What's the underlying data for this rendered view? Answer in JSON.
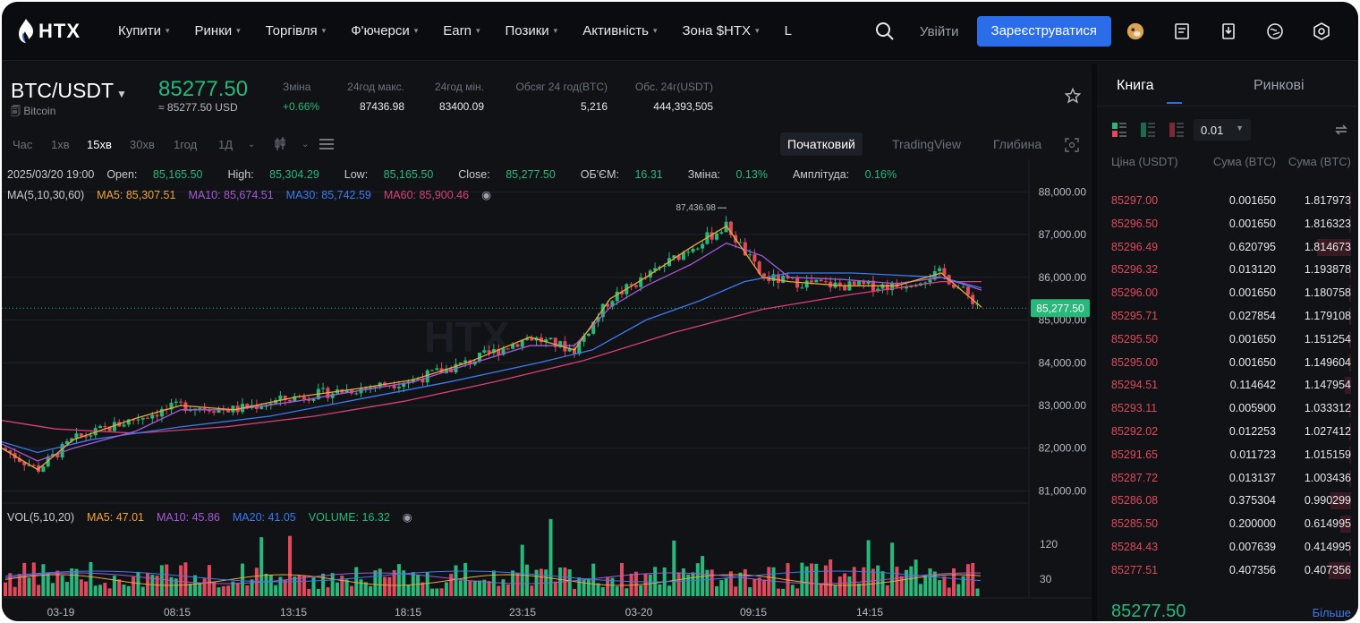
{
  "brand": {
    "logo_text": "HTX"
  },
  "nav": {
    "items": [
      {
        "label": "Купити"
      },
      {
        "label": "Ринки"
      },
      {
        "label": "Торгівля"
      },
      {
        "label": "Ф'ючерси"
      },
      {
        "label": "Earn"
      },
      {
        "label": "Позики"
      },
      {
        "label": "Активність"
      },
      {
        "label": "Зона $HTX"
      },
      {
        "label": "L"
      }
    ],
    "login_label": "Увійти",
    "signup_label": "Зареєструватися",
    "icons": [
      "search-icon",
      "avatar-icon",
      "orders-icon",
      "download-icon",
      "language-icon",
      "settings-icon"
    ]
  },
  "ticker": {
    "pair": "BTC/USDT",
    "coin_name": "Bitcoin",
    "last_price": "85277.50",
    "last_price_usd": "≈ 85277.50 USD",
    "stats": [
      {
        "label": "Зміна",
        "value": "+0.66%"
      },
      {
        "label": "24год макс.",
        "value": "87436.98"
      },
      {
        "label": "24год мін.",
        "value": "83400.09"
      },
      {
        "label": "Обсяг 24 год(BTC)",
        "value": "5,216"
      },
      {
        "label": "Обс. 24г(USDT)",
        "value": "444,393,505"
      }
    ]
  },
  "toolbar": {
    "intervals": [
      "Час",
      "1хв",
      "15хв",
      "30хв",
      "1год",
      "1Д"
    ],
    "active_interval": "15хв",
    "views": [
      "Початковий",
      "TradingView",
      "Глибина"
    ],
    "active_view": "Початковий"
  },
  "chart_legend": {
    "date": "2025/03/20 19:00",
    "open_label": "Open:",
    "open": "85,165.50",
    "high_label": "High:",
    "high": "85,304.29",
    "low_label": "Low:",
    "low": "85,165.50",
    "close_label": "Close:",
    "close": "85,277.50",
    "vol_label": "ОБ'ЄМ:",
    "vol": "16.31",
    "chg_label": "Зміна:",
    "chg": "0.13%",
    "amp_label": "Амплітуда:",
    "amp": "0.16%",
    "ma_title": "MA(5,10,30,60)",
    "ma5": "MA5: 85,307.51",
    "ma10": "MA10: 85,674.51",
    "ma30": "MA30: 85,742.59",
    "ma60": "MA60: 85,900.46",
    "vol_title": "VOL(5,10,20)",
    "vma5": "MA5: 47.01",
    "vma10": "MA10: 45.86",
    "vma20": "MA20: 41.05",
    "volume": "VOLUME: 16.32",
    "watermark": "HTX"
  },
  "chart_data": {
    "type": "candlestick",
    "y_ticks": [
      "88,000.00",
      "87,000.00",
      "86,000.00",
      "85,000.00",
      "84,000.00",
      "83,000.00",
      "82,000.00",
      "81,000.00"
    ],
    "y_range": [
      80800,
      88300
    ],
    "x_ticks": [
      "03-19",
      "08:15",
      "13:15",
      "18:15",
      "23:15",
      "03-20",
      "09:15",
      "14:15"
    ],
    "vol_ticks": [
      "120",
      "30"
    ],
    "price_tag": "85,277.50",
    "high_marker": "87,436.98",
    "colors": {
      "up": "#27b87a",
      "down": "#e04a5c",
      "ma5": "#f0a53a",
      "ma10": "#a35bd6",
      "ma30": "#3d7bf0",
      "ma60": "#d8407a"
    },
    "ma_series": [
      {
        "name": "MA60",
        "points": [
          [
            0,
            82650
          ],
          [
            60,
            82450
          ],
          [
            150,
            82350
          ],
          [
            250,
            82500
          ],
          [
            350,
            82750
          ],
          [
            450,
            83100
          ],
          [
            550,
            83550
          ],
          [
            650,
            84050
          ],
          [
            750,
            84700
          ],
          [
            850,
            85250
          ],
          [
            950,
            85600
          ],
          [
            1050,
            85900
          ],
          [
            1095,
            85900
          ]
        ]
      },
      {
        "name": "MA30",
        "points": [
          [
            0,
            82150
          ],
          [
            40,
            81900
          ],
          [
            100,
            82200
          ],
          [
            200,
            82500
          ],
          [
            300,
            82750
          ],
          [
            400,
            83150
          ],
          [
            500,
            83550
          ],
          [
            600,
            84000
          ],
          [
            660,
            84300
          ],
          [
            720,
            85000
          ],
          [
            780,
            85450
          ],
          [
            830,
            85900
          ],
          [
            880,
            86100
          ],
          [
            950,
            86100
          ],
          [
            1000,
            86050
          ],
          [
            1050,
            86000
          ],
          [
            1095,
            85750
          ]
        ]
      },
      {
        "name": "MA10",
        "points": [
          [
            0,
            82100
          ],
          [
            40,
            81700
          ],
          [
            80,
            82000
          ],
          [
            150,
            82400
          ],
          [
            200,
            82900
          ],
          [
            260,
            82900
          ],
          [
            330,
            83100
          ],
          [
            400,
            83350
          ],
          [
            460,
            83550
          ],
          [
            520,
            83950
          ],
          [
            590,
            84400
          ],
          [
            640,
            84400
          ],
          [
            680,
            85300
          ],
          [
            720,
            85800
          ],
          [
            770,
            86300
          ],
          [
            810,
            86800
          ],
          [
            850,
            86500
          ],
          [
            880,
            86000
          ],
          [
            940,
            85950
          ],
          [
            1000,
            85850
          ],
          [
            1050,
            86000
          ],
          [
            1095,
            85700
          ]
        ]
      },
      {
        "name": "MA5",
        "points": [
          [
            0,
            82000
          ],
          [
            40,
            81500
          ],
          [
            80,
            82200
          ],
          [
            150,
            82700
          ],
          [
            200,
            83000
          ],
          [
            260,
            82900
          ],
          [
            330,
            83200
          ],
          [
            400,
            83400
          ],
          [
            460,
            83600
          ],
          [
            520,
            84000
          ],
          [
            590,
            84600
          ],
          [
            640,
            84300
          ],
          [
            680,
            85500
          ],
          [
            720,
            86000
          ],
          [
            770,
            86700
          ],
          [
            810,
            87200
          ],
          [
            850,
            86000
          ],
          [
            880,
            85900
          ],
          [
            940,
            85800
          ],
          [
            1000,
            85800
          ],
          [
            1050,
            86100
          ],
          [
            1095,
            85300
          ]
        ]
      }
    ]
  },
  "orderbook": {
    "tab_book": "Книга",
    "tab_market": "Ринкові",
    "precision": "0.01",
    "col_price": "Ціна (USDT)",
    "col_amount": "Сума (BTC)",
    "col_total": "Сума (BTC)",
    "asks": [
      {
        "price": "85297.00",
        "amount": "0.001650",
        "total": "1.817973",
        "depth": 0.0
      },
      {
        "price": "85296.50",
        "amount": "0.001650",
        "total": "1.816323",
        "depth": 0.0
      },
      {
        "price": "85296.49",
        "amount": "0.620795",
        "total": "1.814673",
        "depth": 0.47
      },
      {
        "price": "85296.32",
        "amount": "0.013120",
        "total": "1.193878",
        "depth": 0.02
      },
      {
        "price": "85296.00",
        "amount": "0.001650",
        "total": "1.180758",
        "depth": 0.0
      },
      {
        "price": "85295.71",
        "amount": "0.027854",
        "total": "1.179108",
        "depth": 0.03
      },
      {
        "price": "85295.50",
        "amount": "0.001650",
        "total": "1.151254",
        "depth": 0.0
      },
      {
        "price": "85295.00",
        "amount": "0.001650",
        "total": "1.149604",
        "depth": 0.0
      },
      {
        "price": "85294.51",
        "amount": "0.114642",
        "total": "1.147954",
        "depth": 0.09
      },
      {
        "price": "85293.11",
        "amount": "0.005900",
        "total": "1.033312",
        "depth": 0.0
      },
      {
        "price": "85292.02",
        "amount": "0.012253",
        "total": "1.027412",
        "depth": 0.01
      },
      {
        "price": "85291.65",
        "amount": "0.011723",
        "total": "1.015159",
        "depth": 0.01
      },
      {
        "price": "85287.72",
        "amount": "0.013137",
        "total": "1.003436",
        "depth": 0.01
      },
      {
        "price": "85286.08",
        "amount": "0.375304",
        "total": "0.990299",
        "depth": 0.29
      },
      {
        "price": "85285.50",
        "amount": "0.200000",
        "total": "0.614995",
        "depth": 0.15
      },
      {
        "price": "85284.43",
        "amount": "0.007639",
        "total": "0.414995",
        "depth": 0.01
      },
      {
        "price": "85277.51",
        "amount": "0.407356",
        "total": "0.407356",
        "depth": 0.31
      }
    ],
    "last_price": "85277.50",
    "more_label": "Більше"
  }
}
